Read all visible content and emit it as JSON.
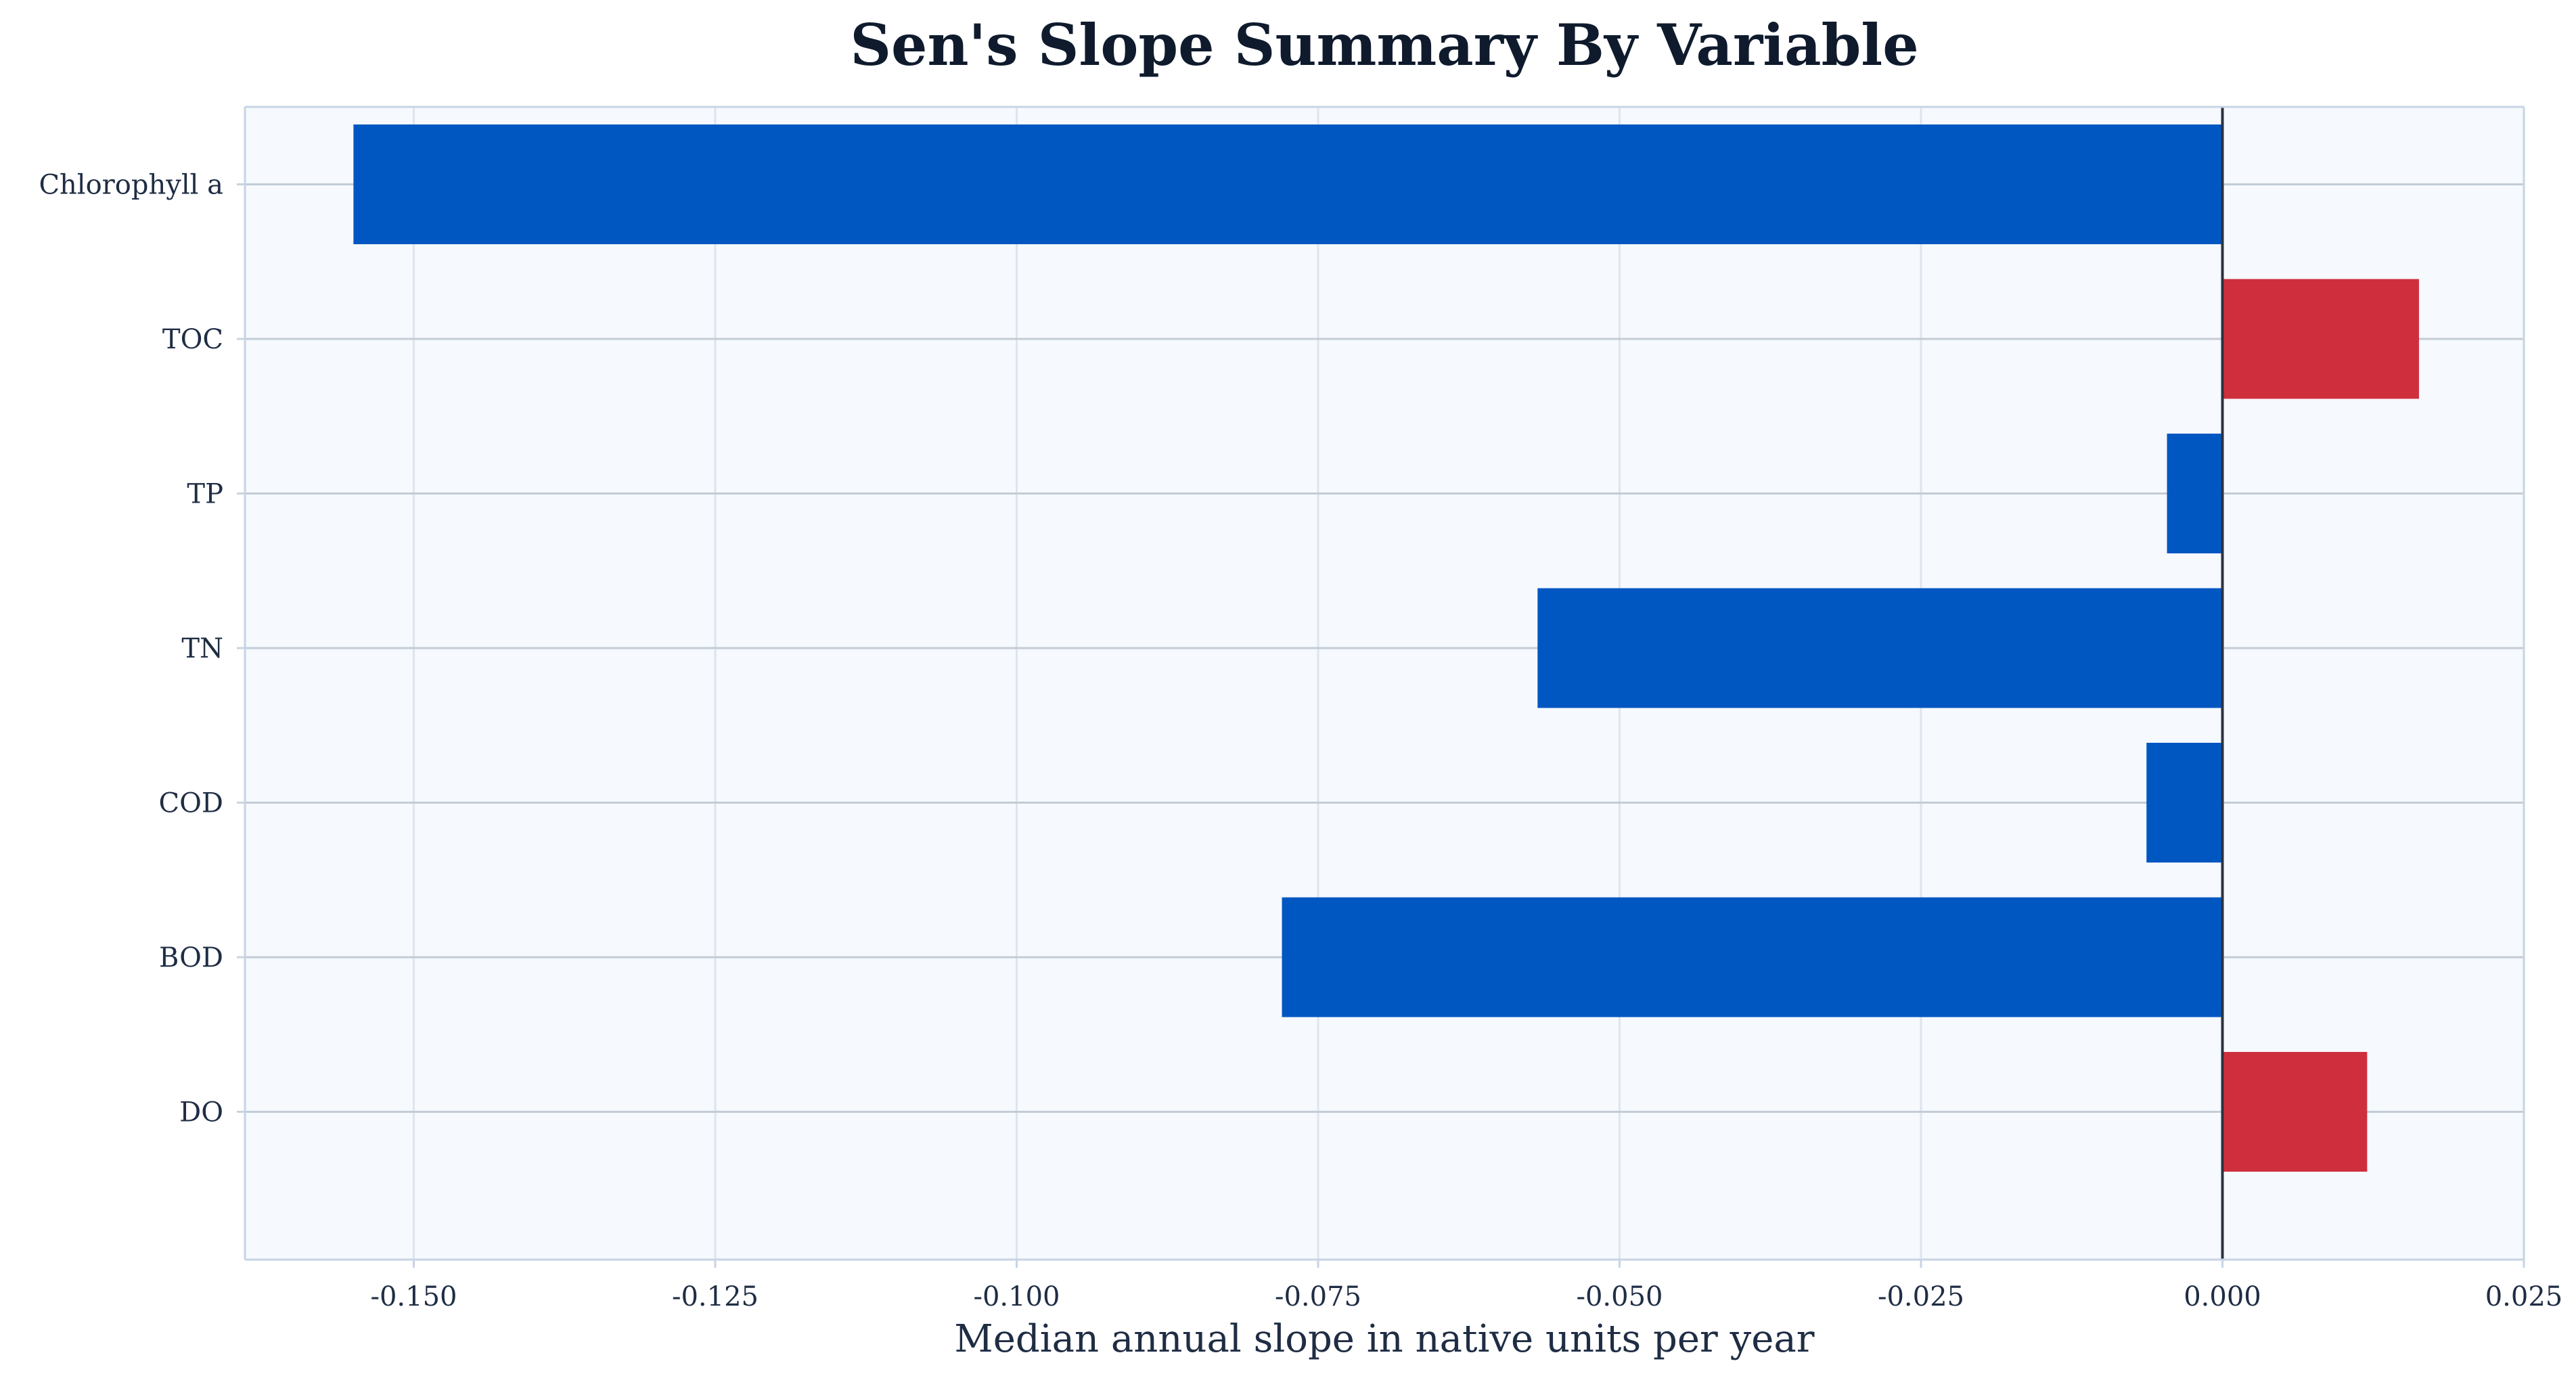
{
  "chart_data": {
    "type": "bar",
    "orientation": "horizontal",
    "title": "Sen's Slope Summary By Variable",
    "xlabel": "Median annual slope in native units per year",
    "ylabel": "",
    "categories": [
      "Chlorophyll a",
      "TOC",
      "TP",
      "TN",
      "COD",
      "BOD",
      "DO"
    ],
    "values": [
      -0.155,
      0.0163,
      -0.0046,
      -0.0568,
      -0.0063,
      -0.078,
      0.012
    ],
    "xlim": [
      -0.164,
      0.025
    ],
    "xticks": [
      -0.15,
      -0.125,
      -0.1,
      -0.075,
      -0.05,
      -0.025,
      0.0,
      0.025
    ],
    "xtick_labels": [
      "-0.150",
      "-0.125",
      "-0.100",
      "-0.075",
      "-0.050",
      "-0.025",
      "0.000",
      "0.025"
    ],
    "grid": true,
    "reference_line": 0.0,
    "colors": {
      "negative": "#0057c2",
      "positive": "#cf2f3c",
      "plot_background": "#f6f9fd",
      "grid": "#dde5ef",
      "category_grid": "#c3ccd6",
      "zero_line": "#2b3340",
      "axis_spine": "#c6d4e4"
    }
  }
}
